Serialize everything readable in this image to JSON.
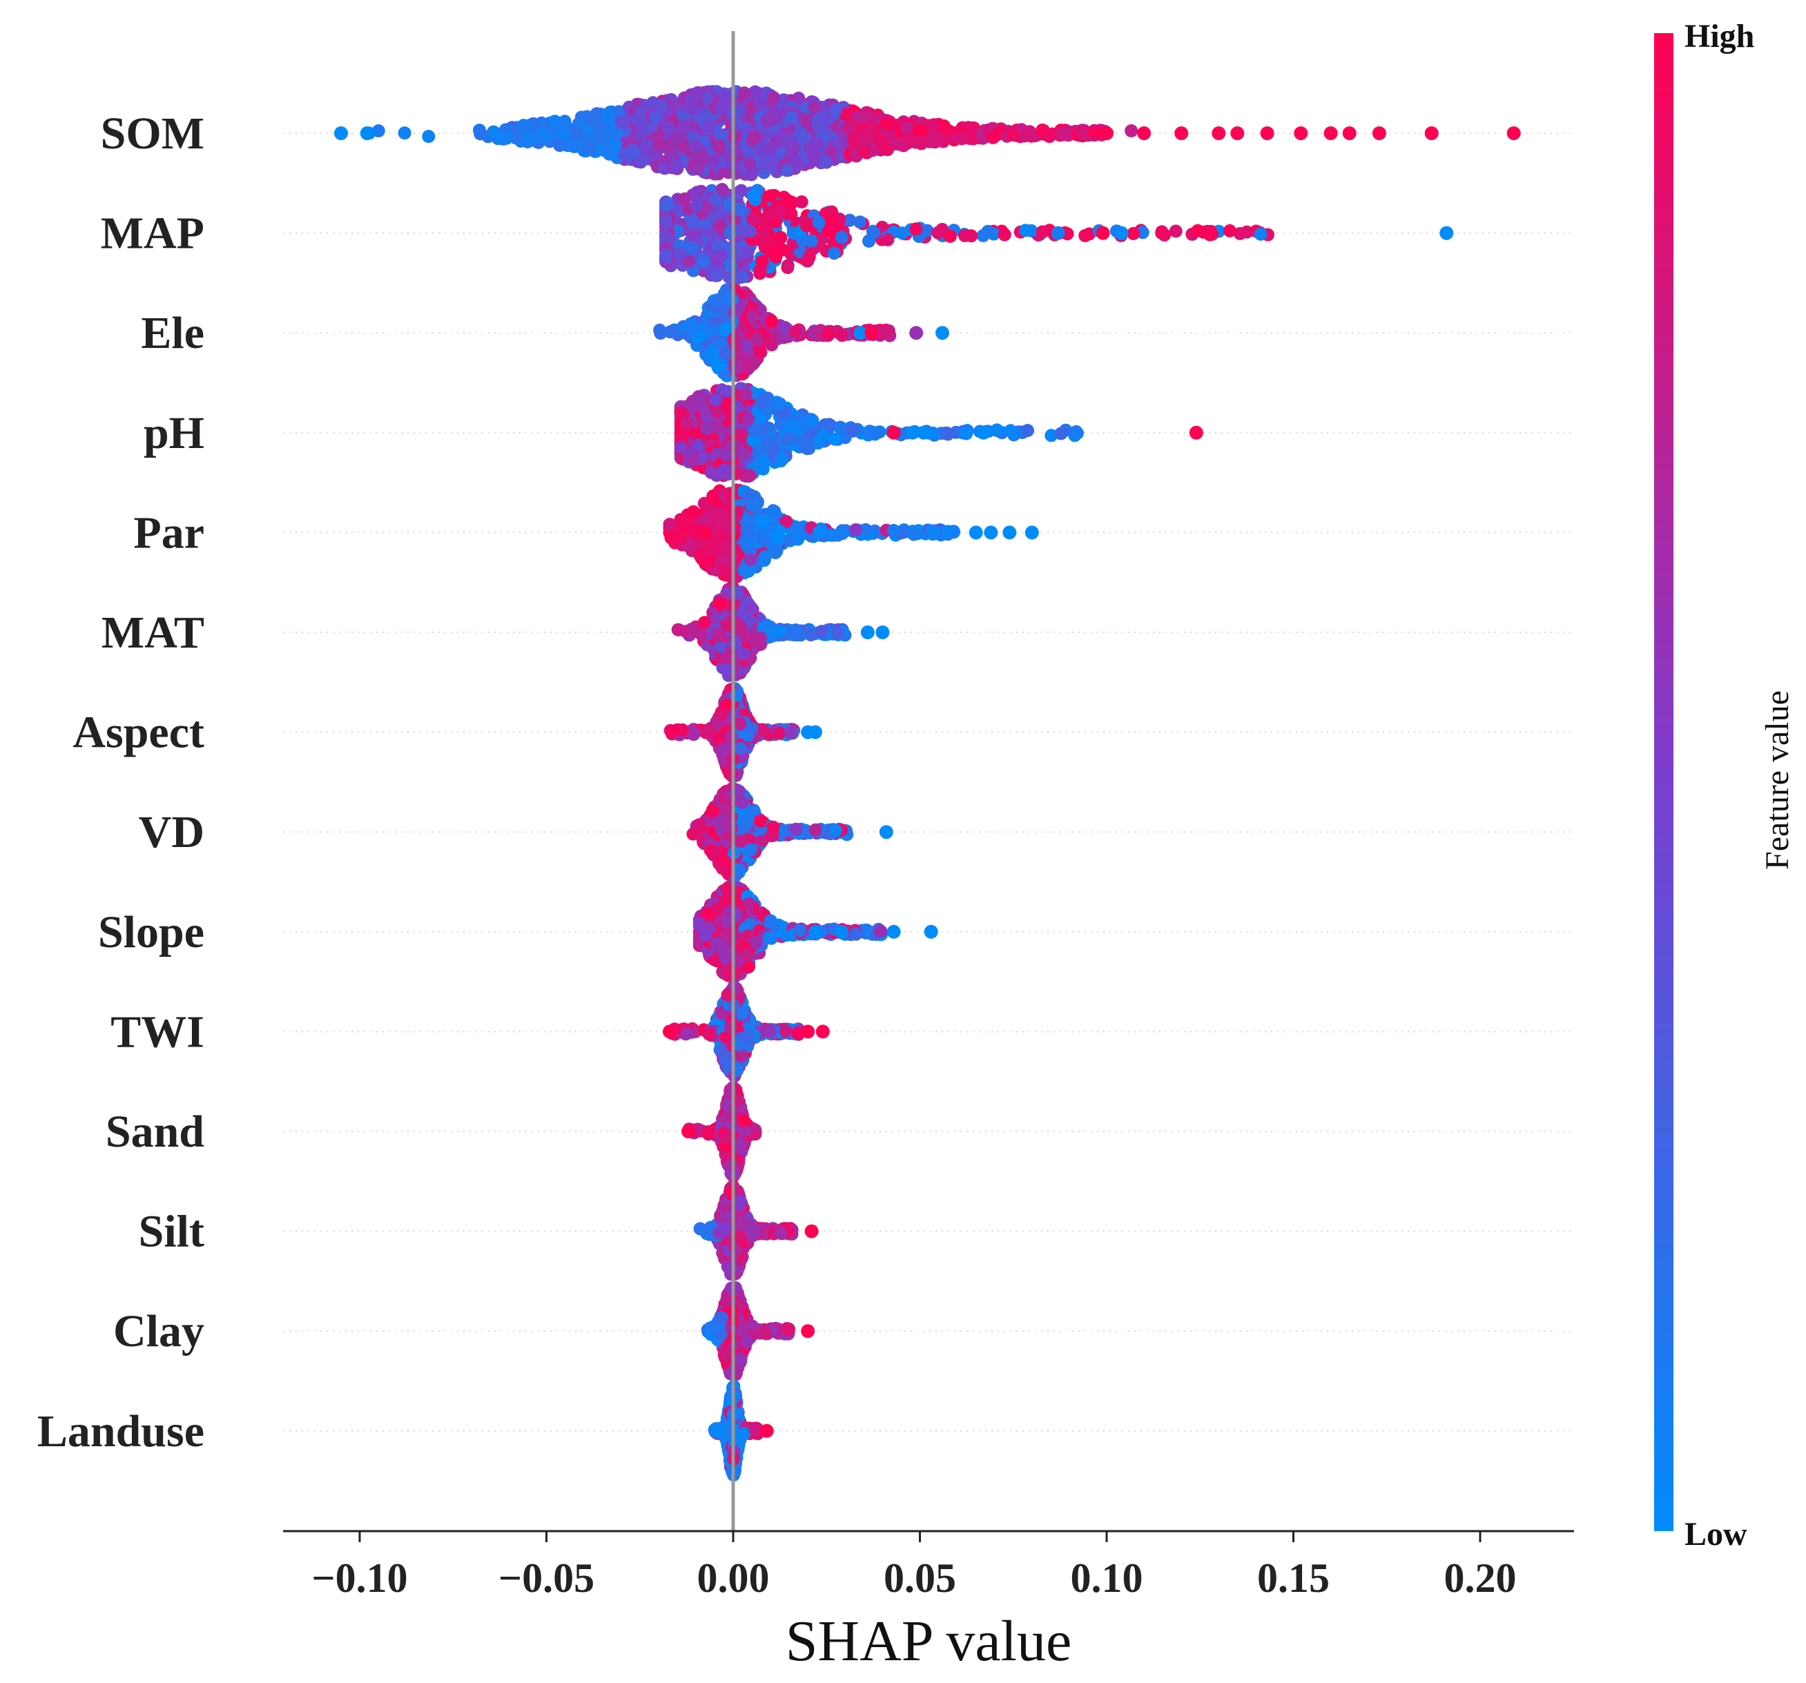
{
  "chart_data": {
    "type": "scatter",
    "subtype": "shap-beeswarm",
    "title": "",
    "xlabel": "SHAP value",
    "ylabel": "",
    "xlim": [
      -0.12,
      0.225
    ],
    "xticks": [
      -0.1,
      -0.05,
      0.0,
      0.05,
      0.1,
      0.15,
      0.2
    ],
    "xtick_labels": [
      "−0.10",
      "−0.05",
      "0.00",
      "0.05",
      "0.10",
      "0.15",
      "0.20"
    ],
    "features": [
      {
        "name": "SOM",
        "range": [
          -0.105,
          0.209
        ],
        "outliers": [
          -0.105,
          -0.098,
          0.1,
          0.11,
          0.12,
          0.13,
          0.135,
          0.143,
          0.152,
          0.16,
          0.165,
          0.173,
          0.187,
          0.209
        ],
        "outlier_colors": [
          0.0,
          0.0,
          1.0,
          1.0,
          1.0,
          1.0,
          1.0,
          1.0,
          1.0,
          1.0,
          1.0,
          1.0,
          1.0,
          1.0
        ]
      },
      {
        "name": "MAP",
        "range": [
          -0.018,
          0.191
        ],
        "outliers": [
          0.087,
          0.099,
          0.104,
          0.191
        ],
        "outlier_colors": [
          0.1,
          1.0,
          0.0,
          0.0
        ]
      },
      {
        "name": "Ele",
        "range": [
          -0.02,
          0.056
        ],
        "outliers": [
          0.034,
          0.037,
          0.049,
          0.056
        ],
        "outlier_colors": [
          0.0,
          1.0,
          0.6,
          0.0
        ]
      },
      {
        "name": "pH",
        "range": [
          -0.014,
          0.124
        ],
        "outliers": [
          0.043,
          0.048,
          0.051,
          0.067,
          0.124
        ],
        "outlier_colors": [
          1.0,
          0.0,
          0.0,
          0.0,
          1.0
        ]
      },
      {
        "name": "Par",
        "range": [
          -0.017,
          0.08
        ],
        "outliers": [
          0.065,
          0.069,
          0.074,
          0.08
        ],
        "outlier_colors": [
          0.0,
          0.0,
          0.0,
          0.0
        ]
      },
      {
        "name": "MAT",
        "range": [
          -0.015,
          0.04
        ],
        "outliers": [
          0.036,
          0.04
        ],
        "outlier_colors": [
          0.0,
          0.0
        ]
      },
      {
        "name": "Aspect",
        "range": [
          -0.017,
          0.022
        ],
        "outliers": [
          0.02,
          0.022
        ],
        "outlier_colors": [
          0.0,
          0.0
        ]
      },
      {
        "name": "VD",
        "range": [
          -0.011,
          0.041
        ],
        "outliers": [
          0.041
        ],
        "outlier_colors": [
          0.0
        ]
      },
      {
        "name": "Slope",
        "range": [
          -0.009,
          0.053
        ],
        "outliers": [
          0.022,
          0.029,
          0.043,
          0.053
        ],
        "outlier_colors": [
          0.0,
          0.0,
          0.0,
          0.0
        ]
      },
      {
        "name": "TWI",
        "range": [
          -0.017,
          0.024
        ],
        "outliers": [
          -0.017,
          0.02,
          0.024
        ],
        "outlier_colors": [
          1.0,
          1.0,
          1.0
        ]
      },
      {
        "name": "Sand",
        "range": [
          -0.012,
          0.006
        ],
        "outliers": [
          -0.012
        ],
        "outlier_colors": [
          1.0
        ]
      },
      {
        "name": "Silt",
        "range": [
          -0.009,
          0.021
        ],
        "outliers": [
          0.021
        ],
        "outlier_colors": [
          1.0
        ]
      },
      {
        "name": "Clay",
        "range": [
          -0.007,
          0.02
        ],
        "outliers": [
          0.02
        ],
        "outlier_colors": [
          1.0
        ]
      },
      {
        "name": "Landuse",
        "range": [
          -0.005,
          0.009
        ],
        "outliers": [
          0.009
        ],
        "outlier_colors": [
          1.0
        ]
      }
    ],
    "colorbar": {
      "title": "Feature value",
      "high_label": "High",
      "low_label": "Low",
      "high_color": "#ff0052",
      "mid_color": "#7b3fd0",
      "low_color": "#008bfb"
    },
    "zero_line_color": "#999999",
    "grid": false
  }
}
